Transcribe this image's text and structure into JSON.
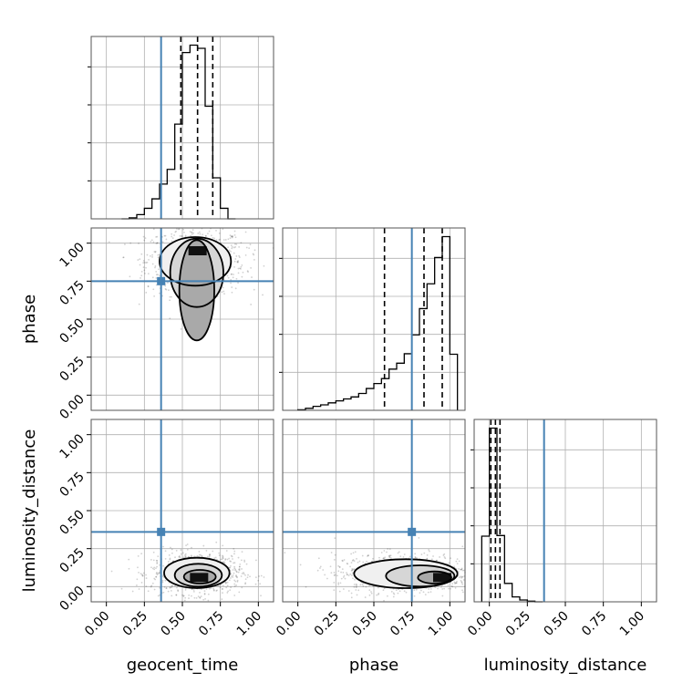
{
  "chart_data": {
    "type": "corner",
    "parameters": [
      "geocent_time",
      "phase",
      "luminosity_distance"
    ],
    "axis_range": [
      -0.1,
      1.1
    ],
    "tick_values": [
      0.0,
      0.25,
      0.5,
      0.75,
      1.0
    ],
    "tick_labels": [
      "0.00",
      "0.25",
      "0.50",
      "0.75",
      "1.00"
    ],
    "grid": true,
    "truth": {
      "geocent_time": 0.36,
      "phase": 0.75,
      "luminosity_distance": 0.36
    },
    "truth_color": "#4682b4",
    "histograms": [
      {
        "parameter": "geocent_time",
        "bin_edges": [
          0.1,
          0.15,
          0.2,
          0.25,
          0.3,
          0.35,
          0.4,
          0.45,
          0.5,
          0.55,
          0.6,
          0.65,
          0.7,
          0.75,
          0.8,
          0.85
        ],
        "counts": [
          0,
          1,
          4,
          10,
          19,
          33,
          47,
          90,
          158,
          165,
          162,
          107,
          39,
          10,
          0
        ],
        "quantiles": [
          0.49,
          0.6,
          0.7
        ]
      },
      {
        "parameter": "phase",
        "bin_edges": [
          0.0,
          0.05,
          0.1,
          0.15,
          0.2,
          0.25,
          0.3,
          0.35,
          0.4,
          0.45,
          0.5,
          0.55,
          0.6,
          0.65,
          0.7,
          0.75,
          0.8,
          0.85,
          0.9,
          0.95,
          1.0,
          1.05
        ],
        "counts": [
          1,
          4,
          8,
          11,
          15,
          19,
          23,
          27,
          34,
          44,
          54,
          64,
          83,
          95,
          114,
          152,
          205,
          255,
          308,
          350,
          113
        ],
        "quantiles": [
          0.57,
          0.83,
          0.95
        ]
      },
      {
        "parameter": "luminosity_distance",
        "bin_edges": [
          -0.05,
          0.0,
          0.05,
          0.1,
          0.15,
          0.2,
          0.25,
          0.3,
          0.35
        ],
        "counts": [
          107,
          283,
          108,
          30,
          8,
          3,
          1,
          0
        ],
        "quantiles": [
          0.01,
          0.04,
          0.07
        ]
      }
    ],
    "joint_densities": [
      {
        "x": "geocent_time",
        "y": "phase",
        "center": [
          0.6,
          0.95
        ],
        "contour_levels": [
          {
            "x_range": [
              0.48,
              0.71
            ],
            "y_range": [
              0.36,
              1.02
            ]
          },
          {
            "x_range": [
              0.42,
              0.77
            ],
            "y_range": [
              0.58,
              1.03
            ]
          },
          {
            "x_range": [
              0.35,
              0.82
            ],
            "y_range": [
              0.72,
              1.04
            ]
          }
        ]
      },
      {
        "x": "geocent_time",
        "y": "luminosity_distance",
        "center": [
          0.61,
          0.06
        ],
        "contour_levels": [
          {
            "x_range": [
              0.51,
              0.72
            ],
            "y_range": [
              0.02,
              0.11
            ]
          },
          {
            "x_range": [
              0.45,
              0.76
            ],
            "y_range": [
              0.0,
              0.15
            ]
          },
          {
            "x_range": [
              0.38,
              0.81
            ],
            "y_range": [
              -0.01,
              0.19
            ]
          }
        ]
      },
      {
        "x": "phase",
        "y": "luminosity_distance",
        "center": [
          0.95,
          0.06
        ],
        "contour_levels": [
          {
            "x_range": [
              0.79,
              1.01
            ],
            "y_range": [
              0.02,
              0.1
            ]
          },
          {
            "x_range": [
              0.58,
              1.03
            ],
            "y_range": [
              0.0,
              0.14
            ]
          },
          {
            "x_range": [
              0.37,
              1.05
            ],
            "y_range": [
              -0.01,
              0.18
            ]
          }
        ]
      }
    ]
  }
}
